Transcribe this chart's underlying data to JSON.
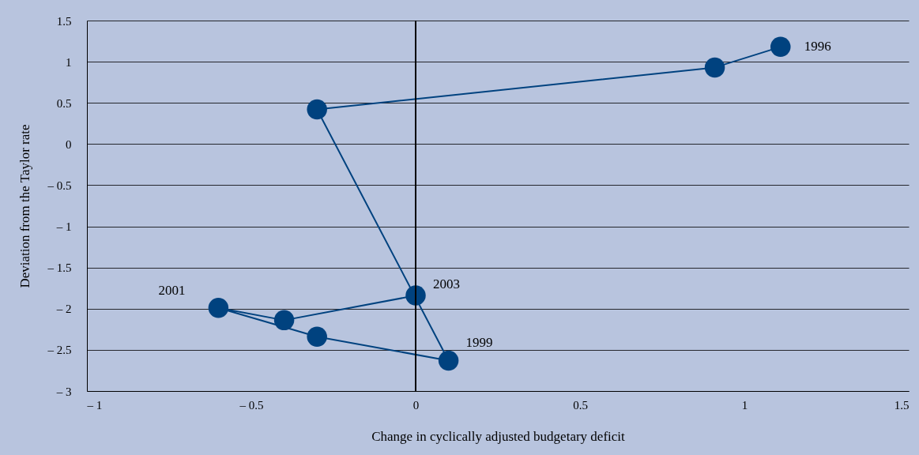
{
  "chart_data": {
    "type": "line",
    "xlabel": "Change in cyclically adjusted budgetary deficit",
    "ylabel": "Deviation from the Taylor rate",
    "x": [
      1.11,
      0.91,
      -0.3,
      0.1,
      -0.3,
      -0.6,
      -0.4,
      0.0
    ],
    "series": [
      {
        "color": "#00427f",
        "values": [
          1.18,
          0.93,
          0.42,
          -2.63,
          -2.34,
          -1.99,
          -2.14,
          -1.84
        ]
      }
    ],
    "xlim": [
      -1,
      1.5
    ],
    "xticks": [
      {
        "value": -1,
        "label": "– 1"
      },
      {
        "value": -0.5,
        "label": "– 0.5"
      },
      0,
      0.5,
      1,
      1.5
    ],
    "ylim": [
      -3,
      1.5
    ],
    "yticks": [
      {
        "value": -3,
        "label": "– 3"
      },
      {
        "value": -2.5,
        "label": "– 2.5"
      },
      {
        "value": -2,
        "label": "– 2"
      },
      {
        "value": -1.5,
        "label": "– 1.5"
      },
      {
        "value": -1,
        "label": "– 1"
      },
      {
        "value": -0.5,
        "label": "– 0.5"
      },
      0,
      0.5,
      1,
      1.5
    ],
    "grid": "y",
    "marker": "circle",
    "line_style": "solid",
    "ref_lines": [
      {
        "axis": "x",
        "value": 0,
        "color": "#000000"
      }
    ],
    "annotations": [
      {
        "text": "1996",
        "x": 1.11,
        "y": 1.18
      },
      {
        "text": "2001",
        "x": -0.6,
        "y": -1.99
      },
      {
        "text": "2003",
        "x": 0.0,
        "y": -1.84
      },
      {
        "text": "1999",
        "x": 0.1,
        "y": -2.63
      }
    ]
  }
}
